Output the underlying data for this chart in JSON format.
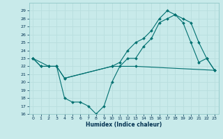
{
  "xlabel": "Humidex (Indice chaleur)",
  "bg_color": "#c8eaea",
  "line_color": "#007070",
  "grid_color": "#b8dede",
  "xlim": [
    -0.5,
    23.5
  ],
  "ylim": [
    16,
    30
  ],
  "xticks": [
    0,
    1,
    2,
    3,
    4,
    5,
    6,
    7,
    8,
    9,
    10,
    11,
    12,
    13,
    14,
    15,
    16,
    17,
    18,
    19,
    20,
    21,
    22,
    23
  ],
  "yticks": [
    16,
    17,
    18,
    19,
    20,
    21,
    22,
    23,
    24,
    25,
    26,
    27,
    28,
    29
  ],
  "line1_x": [
    0,
    1,
    2,
    3,
    4,
    10,
    13,
    23
  ],
  "line1_y": [
    23,
    22,
    22,
    22,
    20.5,
    22,
    22,
    21.5
  ],
  "line2_x": [
    0,
    1,
    2,
    3,
    4,
    5,
    6,
    7,
    8,
    9,
    10,
    11,
    12,
    13,
    14,
    15,
    16,
    17,
    18,
    19,
    20,
    21,
    22,
    23
  ],
  "line2_y": [
    23,
    22,
    22,
    22,
    18,
    17.5,
    17.5,
    17,
    16,
    17,
    20,
    22,
    23,
    23,
    24.5,
    25.5,
    27.5,
    28,
    28.5,
    27.5,
    25,
    22.5,
    23,
    21.5
  ],
  "line3_x": [
    0,
    2,
    3,
    4,
    10,
    11,
    12,
    13,
    14,
    15,
    16,
    17,
    18,
    19,
    20,
    21,
    22,
    23
  ],
  "line3_y": [
    23,
    22,
    22,
    20.5,
    22,
    22.5,
    24,
    25,
    25.5,
    26.5,
    28,
    29,
    28.5,
    28,
    27.5,
    25,
    23,
    21.5
  ]
}
